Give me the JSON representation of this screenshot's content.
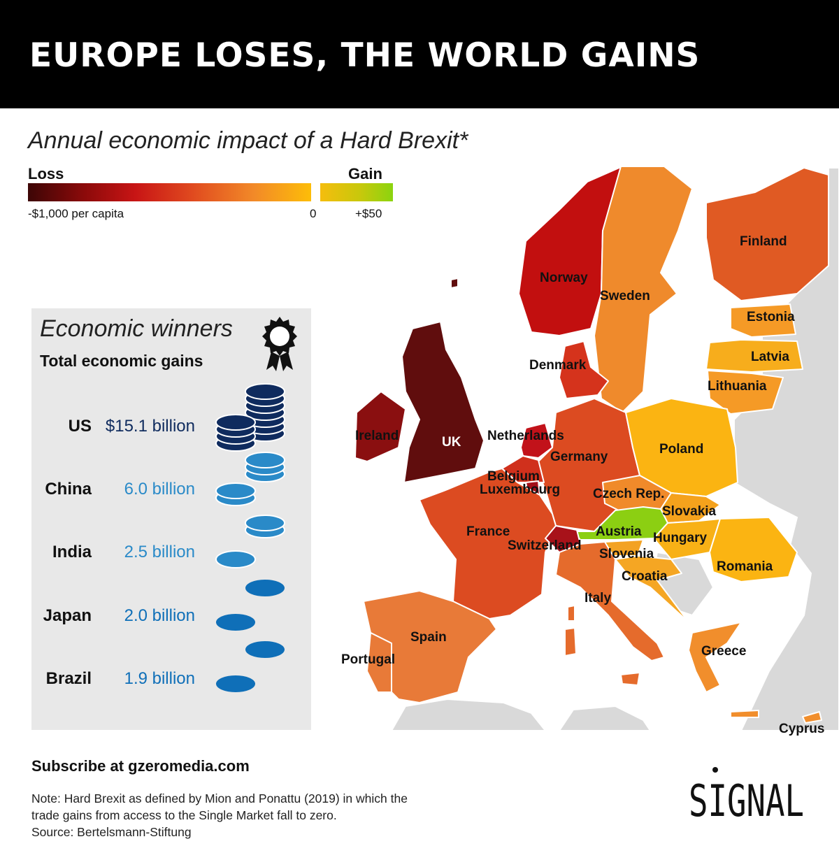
{
  "header": {
    "title": "EUROPE LOSES, THE WORLD GAINS"
  },
  "subtitle": "Annual economic impact of a Hard Brexit*",
  "legend": {
    "loss_label": "Loss",
    "gain_label": "Gain",
    "min_label": "-$1,000 per capita",
    "zero_label": "0",
    "max_label": "+$50",
    "loss_colors": [
      "#3d0606",
      "#8c0a0a",
      "#c81515",
      "#e04a1f",
      "#f28a28",
      "#fdbd08"
    ],
    "gain_colors": [
      "#f5bd0d",
      "#c8c80c",
      "#8bd40f"
    ]
  },
  "map": {
    "countries": [
      {
        "name": "Norway",
        "color": "#c20f0f"
      },
      {
        "name": "Sweden",
        "color": "#ef8a2c"
      },
      {
        "name": "Finland",
        "color": "#e05a23"
      },
      {
        "name": "Estonia",
        "color": "#f59a26"
      },
      {
        "name": "Latvia",
        "color": "#f7ad1c"
      },
      {
        "name": "Lithuania",
        "color": "#f59a26"
      },
      {
        "name": "Denmark",
        "color": "#d5331c"
      },
      {
        "name": "Ireland",
        "color": "#8a0f10"
      },
      {
        "name": "UK",
        "color": "#600d0d"
      },
      {
        "name": "Netherlands",
        "color": "#c2121a"
      },
      {
        "name": "Germany",
        "color": "#dc4b21"
      },
      {
        "name": "Poland",
        "color": "#fbb412"
      },
      {
        "name": "Belgium",
        "color": "#d0301c"
      },
      {
        "name": "Luxembourg",
        "color": "#a3101a"
      },
      {
        "name": "Czech Rep.",
        "color": "#f08a2a"
      },
      {
        "name": "Slovakia",
        "color": "#f5a21c"
      },
      {
        "name": "France",
        "color": "#dc4b21"
      },
      {
        "name": "Austria",
        "color": "#8ccf12"
      },
      {
        "name": "Hungary",
        "color": "#f8b116"
      },
      {
        "name": "Switzerland",
        "color": "#a8121a"
      },
      {
        "name": "Slovenia",
        "color": "#f3a223"
      },
      {
        "name": "Romania",
        "color": "#fbb412"
      },
      {
        "name": "Croatia",
        "color": "#f5a623"
      },
      {
        "name": "Italy",
        "color": "#e56b2c"
      },
      {
        "name": "Spain",
        "color": "#e87a38"
      },
      {
        "name": "Portugal",
        "color": "#e87a38"
      },
      {
        "name": "Greece",
        "color": "#f18e2c"
      },
      {
        "name": "Cyprus",
        "color": "#f18e2c"
      }
    ],
    "non_eu_color": "#d9d9d9"
  },
  "winners": {
    "title": "Economic winners",
    "subtitle": "Total economic gains",
    "rows": [
      {
        "country": "US",
        "value": "$15.1 billion",
        "billions": 15.1,
        "color": "#0f2b5e"
      },
      {
        "country": "China",
        "value": "6.0 billion",
        "billions": 6.0,
        "color": "#2a8ac8"
      },
      {
        "country": "India",
        "value": "2.5 billion",
        "billions": 2.5,
        "color": "#2a8ac8"
      },
      {
        "country": "Japan",
        "value": "2.0 billion",
        "billions": 2.0,
        "color": "#0f6fb8"
      },
      {
        "country": "Brazil",
        "value": "1.9 billion",
        "billions": 1.9,
        "color": "#0f6fb8"
      }
    ]
  },
  "footer": {
    "subscribe": "Subscribe at gzeromedia.com",
    "note_lines": [
      "Note: Hard Brexit as defined by Mion and Ponattu (2019) in which the",
      "trade gains from access to the Single Market fall to zero.",
      "Source: Bertelsmann-Stiftung"
    ],
    "logo": "SIGNAL"
  }
}
